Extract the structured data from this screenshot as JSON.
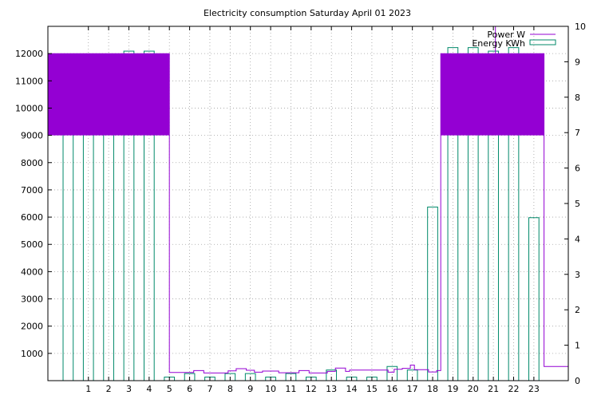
{
  "chart_data": {
    "type": "bar",
    "title": "Electricity consumption Saturday April 01 2023",
    "xlabel": "",
    "ylabel": "",
    "x_ticks": [
      1,
      2,
      3,
      4,
      5,
      6,
      7,
      8,
      9,
      10,
      11,
      12,
      13,
      14,
      15,
      16,
      17,
      18,
      19,
      20,
      21,
      22,
      23
    ],
    "y_left_ticks": [
      1000,
      2000,
      3000,
      4000,
      5000,
      6000,
      7000,
      8000,
      9000,
      10000,
      11000,
      12000
    ],
    "y_right_ticks": [
      0,
      1,
      2,
      3,
      4,
      5,
      6,
      7,
      8,
      9,
      10
    ],
    "xlim": [
      -1,
      24.7
    ],
    "ylim_left": [
      0,
      13000
    ],
    "ylim_right": [
      0,
      10
    ],
    "grid": true,
    "legend_position": "top-right",
    "series": [
      {
        "name": "Power W",
        "axis": "left",
        "color": "#9400d3",
        "kind": "step",
        "points": [
          [
            -1,
            9000
          ],
          [
            -1,
            12000
          ],
          [
            5,
            12000
          ],
          [
            5,
            9000
          ],
          [
            5,
            300
          ],
          [
            6.2,
            300
          ],
          [
            6.2,
            370
          ],
          [
            6.7,
            370
          ],
          [
            6.7,
            280
          ],
          [
            7.9,
            280
          ],
          [
            7.9,
            360
          ],
          [
            8.3,
            360
          ],
          [
            8.3,
            440
          ],
          [
            8.8,
            440
          ],
          [
            8.8,
            380
          ],
          [
            9.2,
            380
          ],
          [
            9.2,
            310
          ],
          [
            9.6,
            310
          ],
          [
            9.6,
            350
          ],
          [
            10.4,
            350
          ],
          [
            10.4,
            290
          ],
          [
            11.4,
            290
          ],
          [
            11.4,
            370
          ],
          [
            11.9,
            370
          ],
          [
            11.9,
            280
          ],
          [
            12.8,
            280
          ],
          [
            12.8,
            340
          ],
          [
            13.2,
            340
          ],
          [
            13.2,
            460
          ],
          [
            13.7,
            460
          ],
          [
            13.7,
            340
          ],
          [
            13.9,
            340
          ],
          [
            13.9,
            390
          ],
          [
            15.8,
            390
          ],
          [
            15.8,
            310
          ],
          [
            16.1,
            310
          ],
          [
            16.1,
            420
          ],
          [
            16.5,
            420
          ],
          [
            16.5,
            450
          ],
          [
            16.9,
            450
          ],
          [
            16.9,
            570
          ],
          [
            17.1,
            570
          ],
          [
            17.1,
            400
          ],
          [
            17.8,
            400
          ],
          [
            17.8,
            320
          ],
          [
            18.2,
            320
          ],
          [
            18.2,
            370
          ],
          [
            18.4,
            370
          ],
          [
            18.4,
            9000
          ],
          [
            18.4,
            12000
          ],
          [
            21.1,
            12000
          ],
          [
            21.1,
            13000
          ],
          [
            21.1,
            12000
          ],
          [
            21.6,
            12000
          ],
          [
            21.6,
            10300
          ],
          [
            21.6,
            12000
          ],
          [
            23.5,
            12000
          ],
          [
            23.5,
            9000
          ],
          [
            23.5,
            520
          ],
          [
            24.7,
            520
          ]
        ]
      },
      {
        "name": "Energy KWh",
        "axis": "right",
        "color": "#00896a",
        "kind": "bar",
        "hours": [
          0,
          1,
          2,
          3,
          4,
          5,
          6,
          7,
          8,
          9,
          10,
          11,
          12,
          13,
          14,
          15,
          16,
          17,
          18,
          19,
          20,
          21,
          22,
          23
        ],
        "values": [
          9.2,
          9.2,
          9.2,
          9.3,
          9.3,
          0.1,
          0.2,
          0.1,
          0.2,
          0.2,
          0.1,
          0.2,
          0.1,
          0.3,
          0.1,
          0.1,
          0.4,
          0.3,
          4.9,
          9.4,
          9.4,
          9.3,
          9.4,
          4.6
        ]
      }
    ]
  }
}
